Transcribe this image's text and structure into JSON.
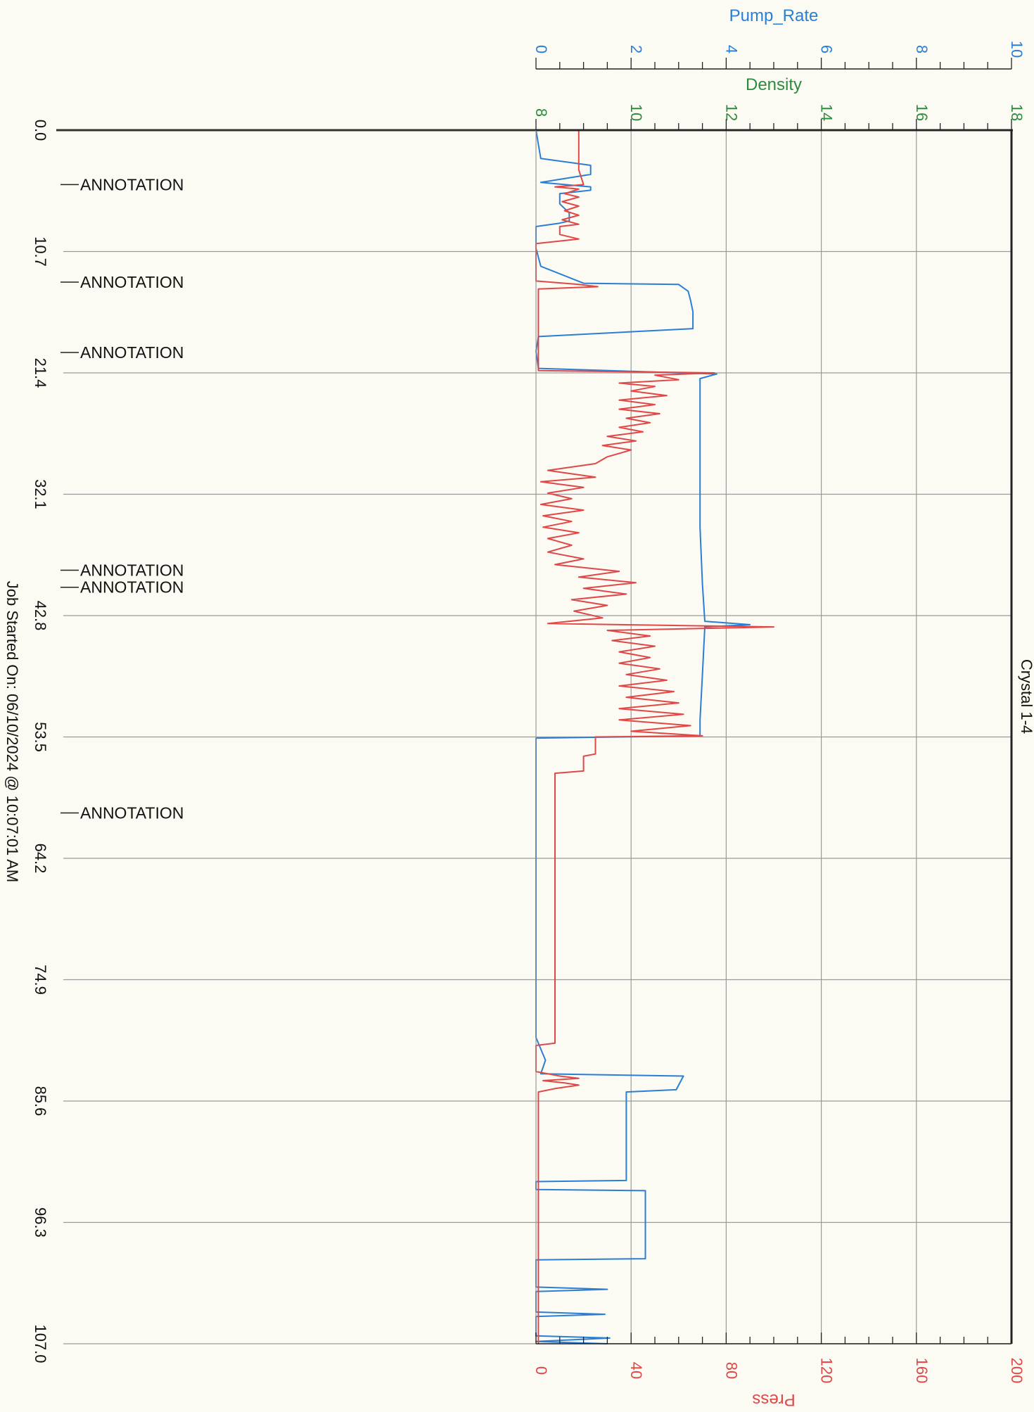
{
  "chart_data": {
    "type": "line",
    "title": "",
    "well_label": "Crystal 1-4",
    "job_started": "Job Started On: 06/10/2024 @ 10:07:01 AM",
    "colors": {
      "pump_rate": "#2a7fd4",
      "density": "#2e8b3e",
      "press": "#e04848"
    },
    "time_axis": {
      "range": [
        0,
        107.0
      ],
      "ticks": [
        "0.0",
        "10.7",
        "21.4",
        "32.1",
        "42.8",
        "53.5",
        "64.2",
        "74.9",
        "85.6",
        "96.3",
        "107.0"
      ]
    },
    "axes": {
      "pump_rate": {
        "label": "Pump_Rate",
        "range": [
          0,
          10
        ],
        "ticks": [
          "0",
          "2",
          "4",
          "6",
          "8",
          "10"
        ]
      },
      "density": {
        "label": "Density",
        "range": [
          8,
          18
        ],
        "ticks": [
          "8",
          "10",
          "12",
          "14",
          "16",
          "18"
        ]
      },
      "press": {
        "label": "Press",
        "range": [
          0,
          200
        ],
        "ticks": [
          "0",
          "40",
          "80",
          "120",
          "160",
          "200"
        ]
      }
    },
    "grid": true,
    "annotations": [
      {
        "time": 4.8,
        "text": "ANNOTATION"
      },
      {
        "time": 13.4,
        "text": "ANNOTATION"
      },
      {
        "time": 19.6,
        "text": "ANNOTATION"
      },
      {
        "time": 38.8,
        "text": "ANNOTATION"
      },
      {
        "time": 40.3,
        "text": "ANNOTATION"
      },
      {
        "time": 60.2,
        "text": "ANNOTATION"
      }
    ],
    "series": [
      {
        "name": "Pump_Rate",
        "axis": "pump_rate",
        "points": [
          [
            0,
            0
          ],
          [
            2.5,
            0.1
          ],
          [
            3.1,
            1.15
          ],
          [
            3.9,
            1.15
          ],
          [
            4.6,
            0.1
          ],
          [
            5.0,
            1.15
          ],
          [
            5.3,
            1.15
          ],
          [
            5.6,
            0.5
          ],
          [
            6.5,
            0.5
          ],
          [
            7.3,
            0.7
          ],
          [
            8.0,
            0.7
          ],
          [
            8.2,
            0.5
          ],
          [
            8.5,
            0
          ],
          [
            10.4,
            0
          ],
          [
            12.0,
            0.1
          ],
          [
            13.5,
            1.0
          ],
          [
            13.6,
            3.0
          ],
          [
            14.2,
            3.2
          ],
          [
            15.0,
            3.25
          ],
          [
            16.0,
            3.3
          ],
          [
            17.5,
            3.3
          ],
          [
            18.2,
            0.05
          ],
          [
            19.5,
            0
          ],
          [
            21.0,
            0.05
          ],
          [
            21.5,
            3.8
          ],
          [
            21.9,
            3.45
          ],
          [
            25.0,
            3.45
          ],
          [
            30.0,
            3.45
          ],
          [
            35.0,
            3.45
          ],
          [
            40.0,
            3.5
          ],
          [
            43.3,
            3.55
          ],
          [
            43.6,
            4.5
          ],
          [
            43.8,
            3.55
          ],
          [
            48.0,
            3.5
          ],
          [
            52.0,
            3.45
          ],
          [
            53.4,
            3.45
          ],
          [
            53.6,
            0
          ],
          [
            60.0,
            0
          ],
          [
            70.0,
            0
          ],
          [
            80.0,
            0
          ],
          [
            82.0,
            0.2
          ],
          [
            83.2,
            0.1
          ],
          [
            83.4,
            3.1
          ],
          [
            84.6,
            2.95
          ],
          [
            84.8,
            1.9
          ],
          [
            86.5,
            1.9
          ],
          [
            92.6,
            1.9
          ],
          [
            92.7,
            0
          ],
          [
            93.4,
            0
          ],
          [
            93.5,
            2.3
          ],
          [
            96.0,
            2.3
          ],
          [
            98.0,
            2.3
          ],
          [
            99.5,
            2.3
          ],
          [
            99.6,
            0
          ],
          [
            102.0,
            0
          ],
          [
            102.2,
            1.5
          ],
          [
            102.4,
            0
          ],
          [
            104.2,
            0
          ],
          [
            104.4,
            1.45
          ],
          [
            104.6,
            0
          ],
          [
            106.3,
            0
          ],
          [
            106.5,
            1.55
          ],
          [
            106.8,
            0
          ],
          [
            107.0,
            1.5
          ]
        ]
      },
      {
        "name": "Press",
        "axis": "press",
        "points": [
          [
            0,
            18
          ],
          [
            3.5,
            18
          ],
          [
            4.8,
            20
          ],
          [
            5.0,
            8
          ],
          [
            5.2,
            18
          ],
          [
            5.6,
            12
          ],
          [
            5.9,
            18
          ],
          [
            6.3,
            11
          ],
          [
            6.7,
            18
          ],
          [
            7.1,
            12
          ],
          [
            7.5,
            18
          ],
          [
            7.9,
            11
          ],
          [
            8.3,
            18
          ],
          [
            8.5,
            10
          ],
          [
            9.2,
            10
          ],
          [
            9.6,
            18
          ],
          [
            10.0,
            0
          ],
          [
            10.7,
            0
          ],
          [
            13.3,
            0
          ],
          [
            13.6,
            18
          ],
          [
            13.8,
            26
          ],
          [
            14.0,
            1
          ],
          [
            21.2,
            1
          ],
          [
            21.4,
            75
          ],
          [
            21.6,
            50
          ],
          [
            22.0,
            60
          ],
          [
            22.3,
            35
          ],
          [
            22.6,
            50
          ],
          [
            23.0,
            40
          ],
          [
            23.4,
            55
          ],
          [
            23.8,
            35
          ],
          [
            24.2,
            50
          ],
          [
            24.6,
            35
          ],
          [
            25.0,
            52
          ],
          [
            25.4,
            38
          ],
          [
            25.8,
            48
          ],
          [
            26.2,
            35
          ],
          [
            26.6,
            45
          ],
          [
            27.0,
            30
          ],
          [
            27.4,
            42
          ],
          [
            27.8,
            28
          ],
          [
            28.2,
            40
          ],
          [
            28.8,
            30
          ],
          [
            29.4,
            25
          ],
          [
            30.0,
            5
          ],
          [
            30.6,
            25
          ],
          [
            31.0,
            2
          ],
          [
            31.5,
            20
          ],
          [
            32.0,
            5
          ],
          [
            32.5,
            15
          ],
          [
            33.0,
            2
          ],
          [
            33.5,
            20
          ],
          [
            34.0,
            3
          ],
          [
            34.5,
            15
          ],
          [
            35.0,
            3
          ],
          [
            35.5,
            18
          ],
          [
            36.0,
            5
          ],
          [
            36.6,
            15
          ],
          [
            37.2,
            5
          ],
          [
            37.8,
            20
          ],
          [
            38.3,
            8
          ],
          [
            38.9,
            35
          ],
          [
            39.4,
            18
          ],
          [
            39.9,
            42
          ],
          [
            40.4,
            20
          ],
          [
            40.9,
            38
          ],
          [
            41.4,
            15
          ],
          [
            41.9,
            30
          ],
          [
            42.4,
            16
          ],
          [
            43.0,
            28
          ],
          [
            43.5,
            5
          ],
          [
            43.8,
            100
          ],
          [
            44.1,
            30
          ],
          [
            44.6,
            48
          ],
          [
            45.0,
            32
          ],
          [
            45.5,
            50
          ],
          [
            46.0,
            35
          ],
          [
            46.5,
            48
          ],
          [
            47.0,
            35
          ],
          [
            47.5,
            52
          ],
          [
            48.0,
            38
          ],
          [
            48.5,
            55
          ],
          [
            49.0,
            35
          ],
          [
            49.5,
            58
          ],
          [
            50.0,
            38
          ],
          [
            50.5,
            60
          ],
          [
            51.0,
            35
          ],
          [
            51.5,
            62
          ],
          [
            52.0,
            35
          ],
          [
            52.5,
            65
          ],
          [
            53.0,
            40
          ],
          [
            53.4,
            70
          ],
          [
            53.5,
            25
          ],
          [
            55.0,
            25
          ],
          [
            55.2,
            20
          ],
          [
            56.5,
            20
          ],
          [
            56.7,
            8
          ],
          [
            80.5,
            8
          ],
          [
            80.7,
            0
          ],
          [
            83.0,
            0
          ],
          [
            83.4,
            10
          ],
          [
            83.6,
            18
          ],
          [
            83.8,
            3
          ],
          [
            84.0,
            12
          ],
          [
            84.2,
            18
          ],
          [
            84.5,
            8
          ],
          [
            84.8,
            1
          ],
          [
            107.0,
            1
          ]
        ]
      }
    ]
  }
}
